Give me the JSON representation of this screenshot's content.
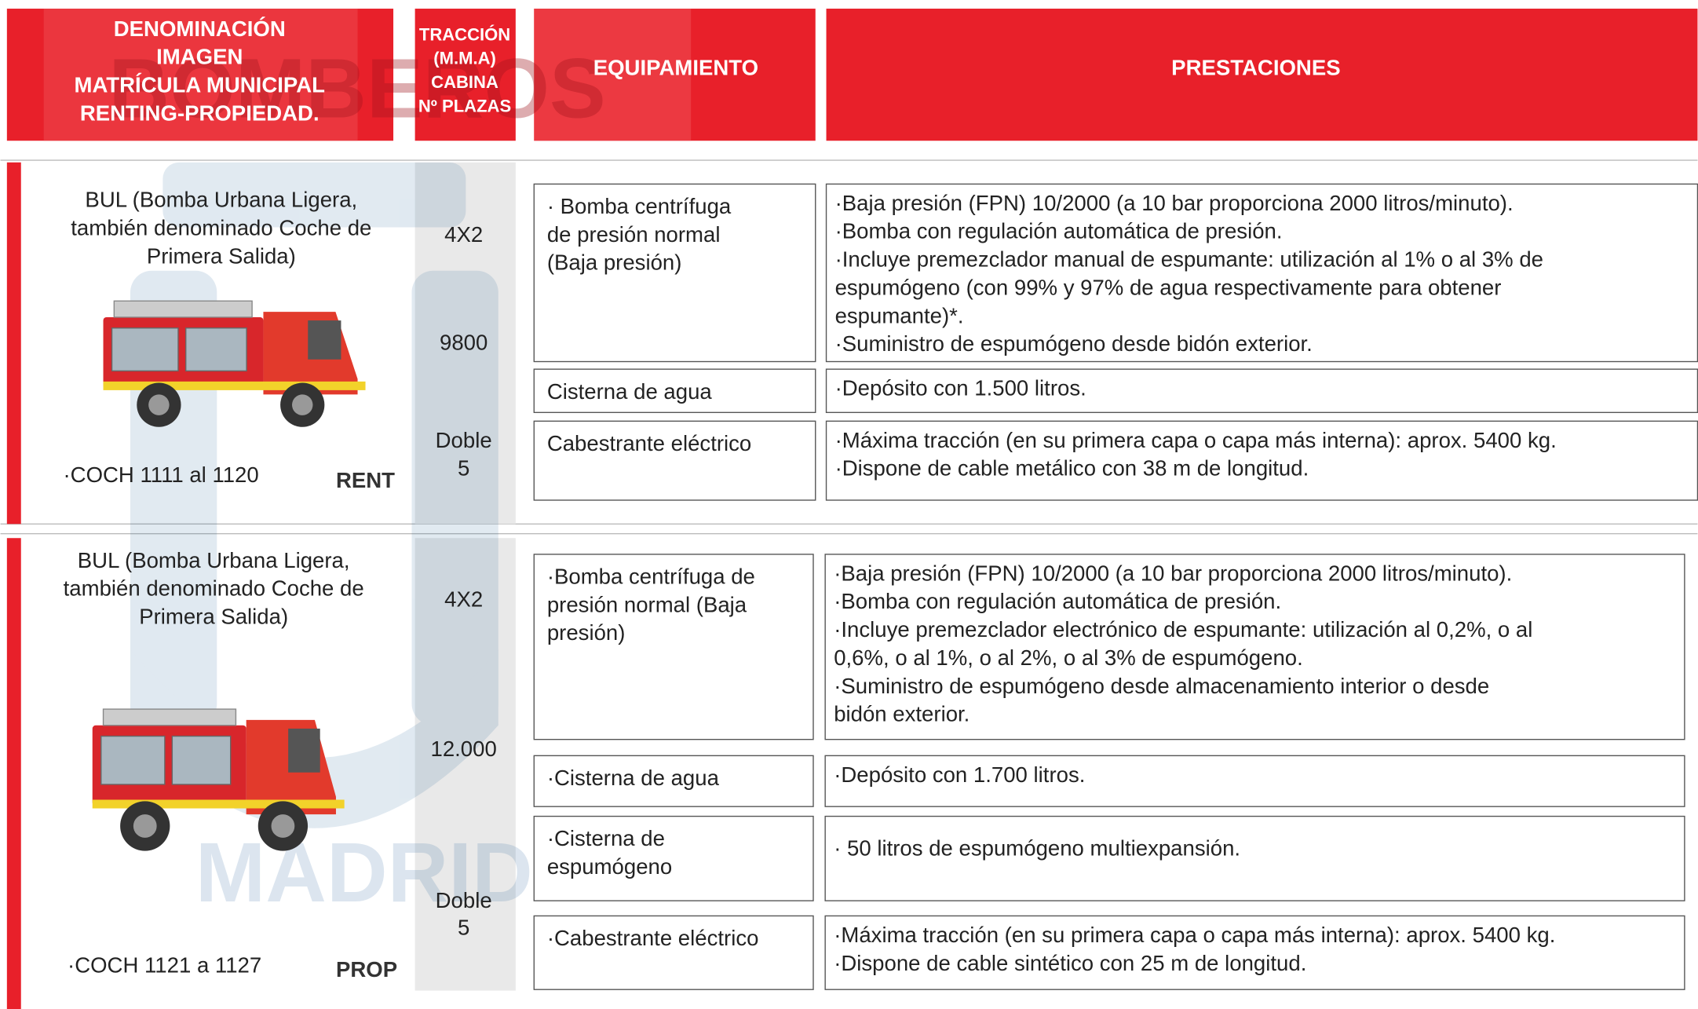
{
  "watermark": [
    "BOMBEROS",
    "MADRID"
  ],
  "header": {
    "denominacion": [
      "DENOMINACIÓN",
      "IMAGEN",
      "MATRÍCULA MUNICIPAL",
      "RENTING-PROPIEDAD."
    ],
    "traccion": [
      "TRACCIÓN",
      "(M.M.A)",
      "CABINA",
      "Nº PLAZAS"
    ],
    "equipamiento": "EQUIPAMIENTO",
    "prestaciones": "PRESTACIONES"
  },
  "rows": [
    {
      "name": [
        "BUL (Bomba Urbana Ligera,",
        "también denominado Coche de",
        "Primera Salida)"
      ],
      "traccion": "4X2",
      "mma": "9800",
      "cabina": "Doble",
      "plazas": "5",
      "code": "·COCH 1111 al 1120",
      "ownership": "RENT",
      "equipment": [
        {
          "name": [
            "· Bomba centrífuga",
            "de presión normal",
            "(Baja presión)"
          ],
          "specs": [
            "·Baja presión (FPN) 10/2000 (a 10 bar proporciona 2000 litros/minuto).",
            "·Bomba con regulación automática de presión.",
            "·Incluye premezclador manual de espumante: utilización al 1% o al 3% de",
            "espumógeno (con 99% y 97% de agua respectivamente para obtener",
            "espumante)*.",
            "·Suministro de espumógeno desde bidón exterior."
          ]
        },
        {
          "name": [
            "Cisterna de agua"
          ],
          "specs": [
            "·Depósito con 1.500 litros."
          ]
        },
        {
          "name": [
            "Cabestrante eléctrico"
          ],
          "specs": [
            "·Máxima tracción (en su primera capa o capa más interna): aprox. 5400 kg.",
            "·Dispone de cable metálico con 38 m de longitud."
          ]
        }
      ]
    },
    {
      "name": [
        "BUL (Bomba Urbana Ligera,",
        "también denominado Coche de",
        "Primera Salida)"
      ],
      "traccion": "4X2",
      "mma": "12.000",
      "cabina": "Doble",
      "plazas": "5",
      "code": "·COCH 1121 a 1127",
      "ownership": "PROP",
      "equipment": [
        {
          "name": [
            "·Bomba centrífuga de",
            "presión normal (Baja",
            "presión)"
          ],
          "specs": [
            "·Baja presión (FPN) 10/2000 (a 10 bar proporciona 2000 litros/minuto).",
            "·Bomba con regulación automática de presión.",
            "·Incluye premezclador electrónico de espumante: utilización al 0,2%, o al",
            "0,6%, o al 1%, o al 2%, o al 3% de espumógeno.",
            "·Suministro de espumógeno desde almacenamiento interior o desde",
            "bidón exterior."
          ]
        },
        {
          "name": [
            "·Cisterna de agua"
          ],
          "specs": [
            "·Depósito con 1.700 litros."
          ]
        },
        {
          "name": [
            "·Cisterna de",
            "espumógeno"
          ],
          "specs": [
            "· 50 litros de espumógeno multiexpansión."
          ]
        },
        {
          "name": [
            "·Cabestrante eléctrico"
          ],
          "specs": [
            "·Máxima tracción (en su primera capa o capa más interna): aprox. 5400 kg.",
            "·Dispone de cable sintético con 25 m de longitud."
          ]
        }
      ]
    }
  ]
}
